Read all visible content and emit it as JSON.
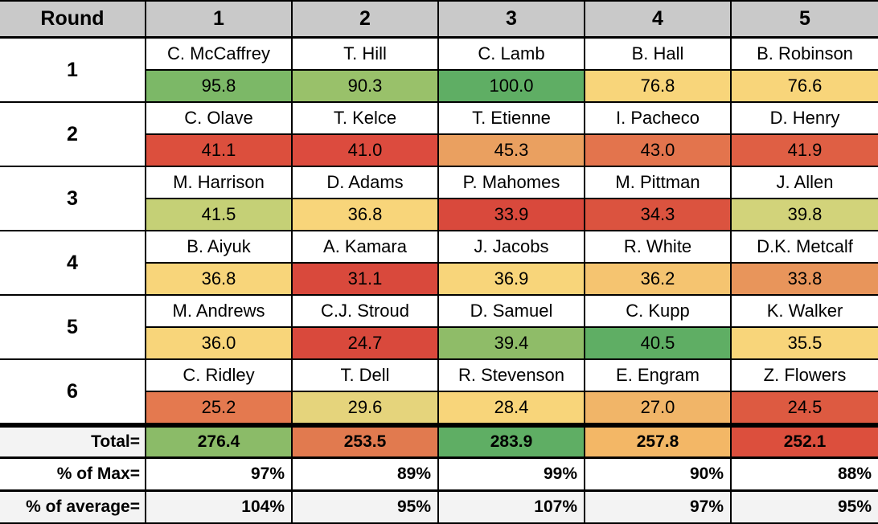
{
  "header": {
    "round_label": "Round",
    "columns": [
      "1",
      "2",
      "3",
      "4",
      "5"
    ]
  },
  "rounds": [
    {
      "label": "1",
      "names": [
        "C. McCaffrey",
        "T. Hill",
        "C. Lamb",
        "B. Hall",
        "B. Robinson"
      ],
      "scores": [
        "95.8",
        "90.3",
        "100.0",
        "76.8",
        "76.6"
      ],
      "colors": [
        "#7cb867",
        "#99c16a",
        "#5fae64",
        "#f8d57a",
        "#f8d57a"
      ]
    },
    {
      "label": "2",
      "names": [
        "C. Olave",
        "T. Kelce",
        "T. Etienne",
        "I. Pacheco",
        "D. Henry"
      ],
      "scores": [
        "41.1",
        "41.0",
        "45.3",
        "43.0",
        "41.9"
      ],
      "colors": [
        "#dc4f3d",
        "#dc4b3e",
        "#eaa060",
        "#e3744d",
        "#df5f44"
      ]
    },
    {
      "label": "3",
      "names": [
        "M. Harrison",
        "D. Adams",
        "P. Mahomes",
        "M. Pittman",
        "J. Allen"
      ],
      "scores": [
        "41.5",
        "36.8",
        "33.9",
        "34.3",
        "39.8"
      ],
      "colors": [
        "#c5d076",
        "#f8d57a",
        "#d9493c",
        "#db533f",
        "#d2d37a"
      ]
    },
    {
      "label": "4",
      "names": [
        "B. Aiyuk",
        "A. Kamara",
        "J. Jacobs",
        "R. White",
        "D.K. Metcalf"
      ],
      "scores": [
        "36.8",
        "31.1",
        "36.9",
        "36.2",
        "33.8"
      ],
      "colors": [
        "#f8d57a",
        "#d9493c",
        "#f8d57a",
        "#f5c470",
        "#e8955b"
      ]
    },
    {
      "label": "5",
      "names": [
        "M. Andrews",
        "C.J. Stroud",
        "D. Samuel",
        "C. Kupp",
        "K. Walker"
      ],
      "scores": [
        "36.0",
        "24.7",
        "39.4",
        "40.5",
        "35.5"
      ],
      "colors": [
        "#f8d57a",
        "#d9493c",
        "#8fbc68",
        "#5fae64",
        "#f8d57a"
      ]
    },
    {
      "label": "6",
      "names": [
        "C. Ridley",
        "T. Dell",
        "R. Stevenson",
        "E. Engram",
        "Z. Flowers"
      ],
      "scores": [
        "25.2",
        "29.6",
        "28.4",
        "27.0",
        "24.5"
      ],
      "colors": [
        "#e4794f",
        "#e5d47c",
        "#f8d57a",
        "#f1b568",
        "#dd5a41"
      ]
    }
  ],
  "totals": {
    "label": "Total=",
    "values": [
      "276.4",
      "253.5",
      "283.9",
      "257.8",
      "252.1"
    ],
    "colors": [
      "#8bbb68",
      "#e17a4f",
      "#5fae64",
      "#f3b766",
      "#dc4f3d"
    ]
  },
  "pct_max": {
    "label": "% of Max=",
    "values": [
      "97%",
      "89%",
      "99%",
      "90%",
      "88%"
    ]
  },
  "pct_avg": {
    "label": "% of average=",
    "values": [
      "104%",
      "95%",
      "107%",
      "97%",
      "95%"
    ]
  }
}
